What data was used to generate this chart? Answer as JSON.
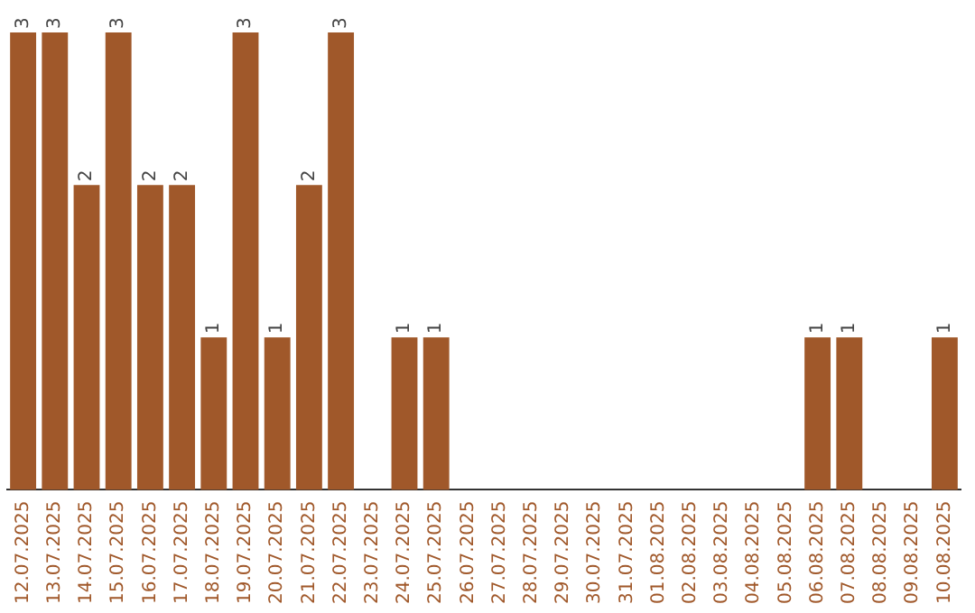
{
  "chart_data": {
    "type": "bar",
    "categories": [
      "12.07.2025",
      "13.07.2025",
      "14.07.2025",
      "15.07.2025",
      "16.07.2025",
      "17.07.2025",
      "18.07.2025",
      "19.07.2025",
      "20.07.2025",
      "21.07.2025",
      "22.07.2025",
      "23.07.2025",
      "24.07.2025",
      "25.07.2025",
      "26.07.2025",
      "27.07.2025",
      "28.07.2025",
      "29.07.2025",
      "30.07.2025",
      "31.07.2025",
      "01.08.2025",
      "02.08.2025",
      "03.08.2025",
      "04.08.2025",
      "05.08.2025",
      "06.08.2025",
      "07.08.2025",
      "08.08.2025",
      "09.08.2025",
      "10.08.2025"
    ],
    "values": [
      3,
      3,
      2,
      3,
      2,
      2,
      1,
      3,
      1,
      2,
      3,
      0,
      1,
      1,
      0,
      0,
      0,
      0,
      0,
      0,
      0,
      0,
      0,
      0,
      0,
      1,
      1,
      0,
      0,
      1
    ],
    "value_labels": [
      "3",
      "3",
      "2",
      "3",
      "2",
      "2",
      "1",
      "3",
      "1",
      "2",
      "3",
      null,
      "1",
      "1",
      null,
      null,
      null,
      null,
      null,
      null,
      null,
      null,
      null,
      null,
      null,
      "1",
      "1",
      null,
      null,
      "1"
    ],
    "color": "#a0582a"
  }
}
